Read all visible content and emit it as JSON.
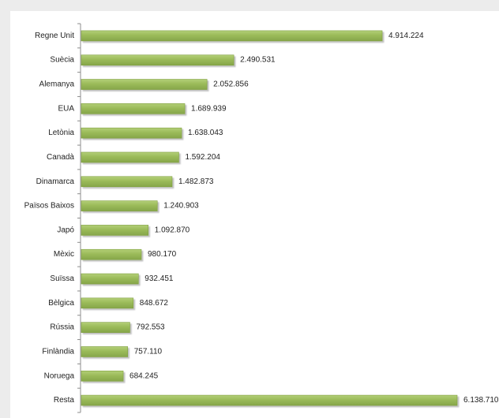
{
  "chart_data": {
    "type": "bar",
    "orientation": "horizontal",
    "title": "",
    "xlabel": "",
    "ylabel": "",
    "grid": false,
    "legend": "none",
    "bar_color": "#9bbb59",
    "bar_edge_color": "#7f9f3e",
    "categories": [
      "Regne Unit",
      "Suècia",
      "Alemanya",
      "EUA",
      "Letònia",
      "Canadà",
      "Dinamarca",
      "Països Baixos",
      "Japó",
      "Mèxic",
      "Suïssa",
      "Bèlgica",
      "Rússia",
      "Finlàndia",
      "Noruega",
      "Resta"
    ],
    "values": [
      4914224,
      2490531,
      2052856,
      1689939,
      1638043,
      1592204,
      1482873,
      1240903,
      1092870,
      980170,
      932451,
      848672,
      792553,
      757110,
      684245,
      6138710
    ],
    "value_labels": [
      "4.914.224",
      "2.490.531",
      "2.052.856",
      "1.689.939",
      "1.638.043",
      "1.592.204",
      "1.482.873",
      "1.240.903",
      "1.092.870",
      "980.170",
      "932.451",
      "848.672",
      "792.553",
      "757.110",
      "684.245",
      "6.138.710"
    ]
  }
}
